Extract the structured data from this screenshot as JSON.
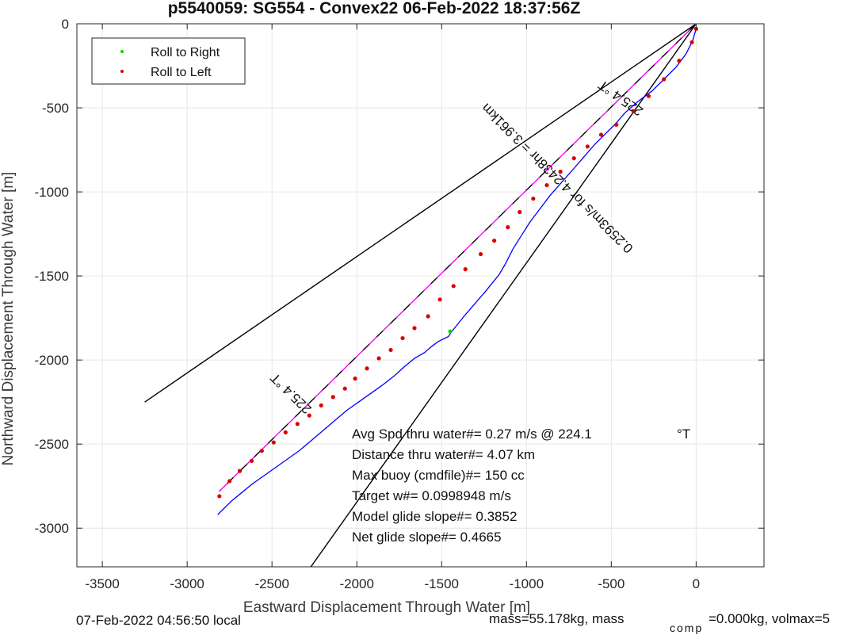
{
  "chart_data": {
    "type": "line",
    "title": "p5540059: SG554 - Convex22 06-Feb-2022 18:37:56Z",
    "xlabel": "Eastward Displacement Through Water [m]",
    "ylabel": "Northward Displacement Through Water [m]",
    "xlim": [
      -3650,
      400
    ],
    "ylim": [
      -3230,
      0
    ],
    "xticks": [
      -3500,
      -3000,
      -2500,
      -2000,
      -1500,
      -1000,
      -500,
      0
    ],
    "yticks": [
      0,
      -500,
      -1000,
      -1500,
      -2000,
      -2500,
      -3000
    ],
    "grid": true,
    "legend": {
      "placement": "top-left",
      "entries": [
        {
          "label": "Roll to Right",
          "color": "#00dd00"
        },
        {
          "label": "Roll to Left",
          "color": "#dd0000"
        }
      ]
    },
    "series": [
      {
        "kind": "track",
        "color": "#0000ff",
        "x": [
          0,
          -20,
          -60,
          -120,
          -190,
          -260,
          -340,
          -420,
          -480,
          -540,
          -600,
          -660,
          -720,
          -790,
          -860,
          -920,
          -980,
          -1030,
          -1080,
          -1120,
          -1160,
          -1200,
          -1240,
          -1300,
          -1360,
          -1400,
          -1440,
          -1460,
          -1490,
          -1520,
          -1560,
          -1600,
          -1660,
          -1720,
          -1780,
          -1850,
          -1920,
          -1990,
          -2060,
          -2130,
          -2200,
          -2270,
          -2340,
          -2410,
          -2480,
          -2550,
          -2620,
          -2680,
          -2740,
          -2780,
          -2820
        ],
        "y": [
          -30,
          -100,
          -180,
          -260,
          -330,
          -400,
          -460,
          -530,
          -600,
          -660,
          -720,
          -790,
          -860,
          -940,
          -1020,
          -1100,
          -1180,
          -1260,
          -1340,
          -1420,
          -1490,
          -1540,
          -1590,
          -1660,
          -1730,
          -1780,
          -1830,
          -1860,
          -1875,
          -1890,
          -1920,
          -1955,
          -1990,
          -2040,
          -2095,
          -2150,
          -2200,
          -2250,
          -2300,
          -2360,
          -2420,
          -2480,
          -2540,
          -2590,
          -2640,
          -2690,
          -2740,
          -2790,
          -2840,
          -2880,
          -2920
        ]
      },
      {
        "kind": "roll-left-points",
        "color": "#dd0000",
        "x": [
          0,
          -25,
          -100,
          -190,
          -280,
          -370,
          -470,
          -560,
          -640,
          -720,
          -800,
          -880,
          -960,
          -1040,
          -1110,
          -1190,
          -1270,
          -1360,
          -1430,
          -1510,
          -1580,
          -1660,
          -1730,
          -1800,
          -1870,
          -1940,
          -2010,
          -2070,
          -2140,
          -2210,
          -2280,
          -2350,
          -2420,
          -2490,
          -2560,
          -2620,
          -2690,
          -2750,
          -2810
        ],
        "y": [
          -30,
          -110,
          -220,
          -330,
          -430,
          -520,
          -600,
          -660,
          -730,
          -800,
          -880,
          -960,
          -1040,
          -1120,
          -1210,
          -1290,
          -1370,
          -1460,
          -1560,
          -1640,
          -1740,
          -1810,
          -1870,
          -1940,
          -1990,
          -2050,
          -2110,
          -2170,
          -2220,
          -2270,
          -2330,
          -2380,
          -2430,
          -2490,
          -2540,
          -2600,
          -2660,
          -2720,
          -2810
        ]
      },
      {
        "kind": "roll-right-points",
        "color": "#00dd00",
        "x": [
          -1450
        ],
        "y": [
          -1830
        ]
      }
    ],
    "reference_lines": [
      {
        "color": "#000000",
        "x": [
          0,
          -3250
        ],
        "y": [
          0,
          -2250
        ]
      },
      {
        "color": "#000000",
        "x": [
          0,
          -2320
        ],
        "y": [
          0,
          -3300
        ]
      },
      {
        "color": "#000000",
        "dash": true,
        "x": [
          0,
          -2810
        ],
        "y": [
          0,
          -2780
        ]
      },
      {
        "color": "#ff00ff",
        "dash": true,
        "x": [
          0,
          -2810
        ],
        "y": [
          0,
          -2780
        ]
      }
    ],
    "line_annotations": [
      {
        "text": "225.4 °T",
        "x": -430,
        "y": -420,
        "rotation": 215.4
      },
      {
        "text": "0.2593m/s for 4.2438hr = 3.961km",
        "x": -800,
        "y": -900,
        "rotation": 224.6
      },
      {
        "text": "225.4 °T",
        "x": -2370,
        "y": -2180,
        "rotation": 224.6
      }
    ]
  },
  "stats": {
    "avg_spd": "Avg Spd thru water#=  0.27 m/s @ 224.1",
    "avg_spd_unit": "°T",
    "distance": "Distance thru water#=  4.07 km",
    "max_buoy": "Max buoy (cmdfile)#= 150 cc",
    "target_w": "Target w#= 0.0998948 m/s",
    "model_glide": "Model glide slope#= 0.3852",
    "net_glide": "Net glide slope#= 0.4665"
  },
  "footer": {
    "local_time": "07-Feb-2022 04:56:50 local",
    "mass": "mass=55.178kg, mass",
    "comp_sub": "comp",
    "mass_rest": "=0.000kg, volmax=5"
  }
}
